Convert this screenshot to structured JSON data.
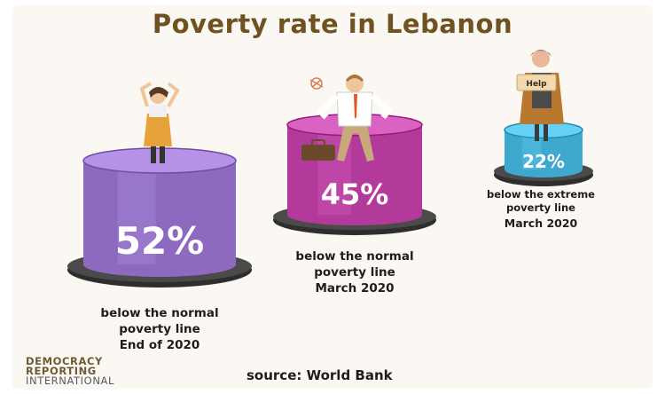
{
  "title": "Poverty rate in Lebanon",
  "chart_data": {
    "type": "bar",
    "categories": [
      "below the normal poverty line End of 2020",
      "below the normal poverty line March 2020",
      "below the extreme poverty line March 2020"
    ],
    "values": [
      52,
      45,
      22
    ],
    "value_labels": [
      "52%",
      "45%",
      "22%"
    ],
    "unit": "%",
    "colors": [
      "#8d6ac0",
      "#b23a9a",
      "#3fa8cf"
    ],
    "captions": [
      [
        "below the normal",
        "poverty line",
        "End of 2020"
      ],
      [
        "below the normal",
        "poverty line",
        "March 2020"
      ],
      [
        "below the extreme",
        "poverty line",
        "March 2020"
      ]
    ]
  },
  "figure_sign": "Help",
  "source": "source: World Bank",
  "logo": [
    "DEMOCRACY",
    "REPORTING",
    "INTERNATIONAL"
  ]
}
